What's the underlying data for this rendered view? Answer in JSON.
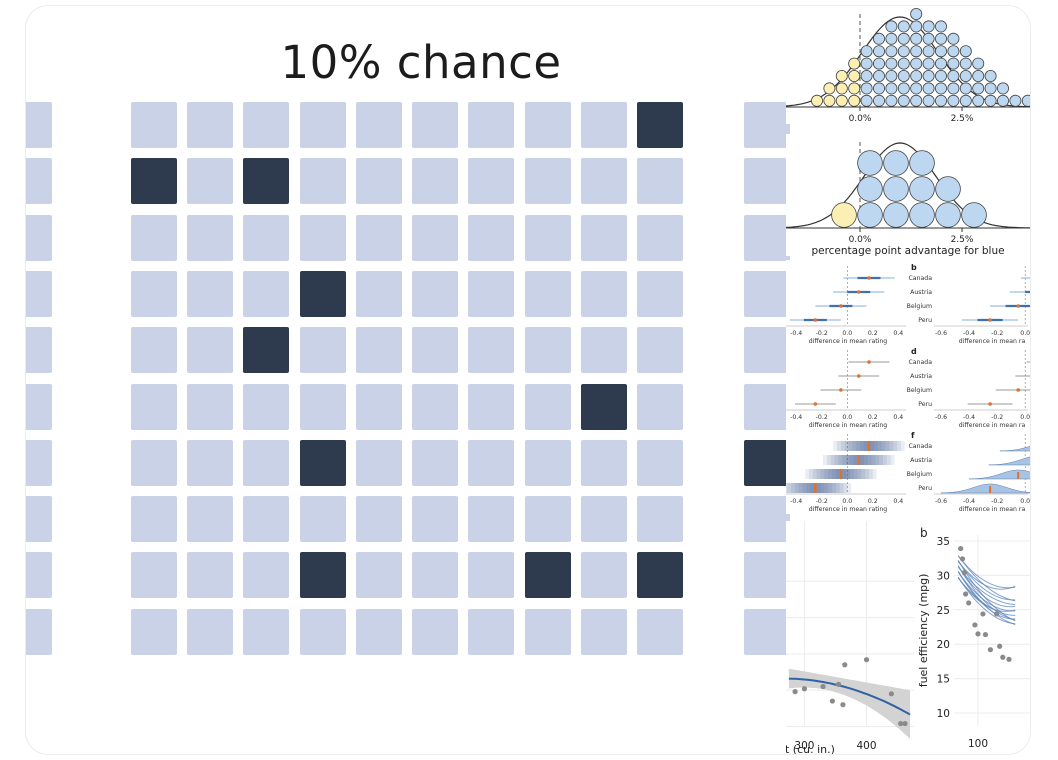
{
  "icon_grid": {
    "title": "10% chance",
    "rows": [
      [
        0,
        0,
        0,
        0,
        0,
        0,
        0,
        0,
        0,
        0,
        1,
        0
      ],
      [
        0,
        1,
        0,
        1,
        0,
        0,
        0,
        0,
        0,
        0,
        0,
        0
      ],
      [
        0,
        0,
        0,
        0,
        0,
        0,
        0,
        0,
        0,
        0,
        0,
        0
      ],
      [
        0,
        0,
        0,
        0,
        1,
        0,
        0,
        0,
        0,
        0,
        0,
        0
      ],
      [
        0,
        0,
        0,
        1,
        0,
        0,
        0,
        0,
        0,
        0,
        0,
        0
      ],
      [
        0,
        0,
        0,
        0,
        0,
        0,
        0,
        0,
        0,
        1,
        0,
        0
      ],
      [
        0,
        0,
        0,
        0,
        1,
        0,
        0,
        0,
        0,
        0,
        0,
        1
      ],
      [
        0,
        0,
        0,
        0,
        0,
        0,
        0,
        0,
        0,
        0,
        0,
        0
      ],
      [
        0,
        0,
        0,
        0,
        1,
        0,
        0,
        0,
        1,
        0,
        1,
        0
      ],
      [
        0,
        0,
        0,
        0,
        0,
        0,
        0,
        0,
        0,
        0,
        0,
        0
      ]
    ],
    "colors": {
      "miss": "#c9d2e6",
      "hit": "#2e3a4e"
    }
  },
  "chart_data": [
    {
      "type": "scatter",
      "id": "quantile-dotplot-small",
      "ticks": [
        "0.0%",
        "2.5%"
      ],
      "colors": {
        "below_zero": "#fbefb3",
        "above_zero": "#bcd7ef"
      }
    },
    {
      "type": "scatter",
      "id": "quantile-dotplot-large",
      "ticks": [
        "0.0%",
        "2.5%"
      ],
      "xlabel": "percentage point advantage for blue",
      "colors": {
        "below_zero": "#fbefb3",
        "above_zero": "#bcd7ef"
      }
    },
    {
      "type": "scatter",
      "id": "mean-rating-intervals",
      "panels": [
        {
          "label": "",
          "show_categories": false,
          "style": "interval-blue"
        },
        {
          "label": "b",
          "show_categories": true,
          "style": "interval-blue"
        },
        {
          "label": "",
          "show_categories": false,
          "style": "interval-grey"
        },
        {
          "label": "d",
          "show_categories": true,
          "style": "interval-grey"
        },
        {
          "label": "",
          "show_categories": false,
          "style": "gradient"
        },
        {
          "label": "f",
          "show_categories": true,
          "style": "violin"
        }
      ],
      "categories": [
        "Canada",
        "Austria",
        "Belgium",
        "Peru"
      ],
      "means": [
        0.17,
        0.09,
        -0.05,
        -0.25
      ],
      "ticks": [
        "-0.4",
        "-0.2",
        "0.0",
        "0.2",
        "0.4"
      ],
      "ticks_clipped": [
        "-0.6",
        "-0.4",
        "-0.2",
        "0.0",
        "0.2"
      ],
      "xlabel": "difference in mean rating",
      "xlabel_clipped": "difference in mean ra"
    },
    {
      "type": "scatter",
      "id": "displacement-fit",
      "xticks": [
        "300",
        "400"
      ],
      "xlabel_clipped": "t (cu. in.)",
      "x": [
        285,
        300,
        330,
        345,
        355,
        362,
        365,
        400,
        440,
        455,
        462
      ],
      "y": [
        14.8,
        15.2,
        15.5,
        13.5,
        15.8,
        13.0,
        18.5,
        19.2,
        14.5,
        10.4,
        10.4
      ]
    },
    {
      "type": "line",
      "id": "fuel-efficiency-hops",
      "label": "b",
      "ylabel": "fuel efficiency (mpg)",
      "yticks": [
        "10",
        "15",
        "20",
        "25",
        "30",
        "35"
      ],
      "xticks": [
        "100"
      ],
      "ylim": [
        8,
        35
      ],
      "x": [
        72,
        75,
        78,
        80,
        85,
        95,
        100,
        108,
        112,
        120,
        130,
        135,
        140,
        150
      ],
      "y": [
        33.9,
        32.4,
        30.4,
        27.3,
        26,
        22.8,
        21.5,
        24.4,
        21.4,
        19.2,
        24.4,
        19.7,
        18.1,
        17.8
      ]
    }
  ]
}
